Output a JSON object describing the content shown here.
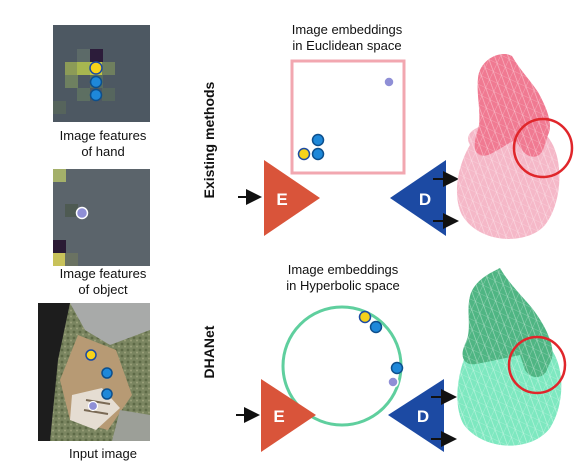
{
  "left_column": {
    "hand_features_caption_line1": "Image features",
    "hand_features_caption_line2": "of hand",
    "object_features_caption_line1": "Image features",
    "object_features_caption_line2": "of object",
    "input_image_caption": "Input image"
  },
  "rows": {
    "existing": {
      "side_label": "Existing methods",
      "embed_title_line1": "Image embeddings",
      "embed_title_line2": "in Euclidean space",
      "encoder_letter": "E",
      "decoder_letter": "D"
    },
    "dhanet": {
      "side_label": "DHANet",
      "embed_title_line1": "Image embeddings",
      "embed_title_line2": "in Hyperbolic space",
      "encoder_letter": "E",
      "decoder_letter": "D"
    }
  },
  "colors": {
    "euclid_box": "#f2a7b0",
    "hyperbolic_circle": "#5fcf9e",
    "encoder": "#d9543a",
    "decoder": "#1c4aa3",
    "hand_feature_dot": "#f6d21a",
    "object_feature_dot": "#8f8fd6",
    "embedding_blue": "#1e88d9",
    "mesh_pink_hand": "#f07a92",
    "mesh_pink_object": "#f5b8c8",
    "mesh_green_hand": "#4fb583",
    "mesh_green_object": "#7ee8c0",
    "highlight_circle": "#e0262b"
  }
}
